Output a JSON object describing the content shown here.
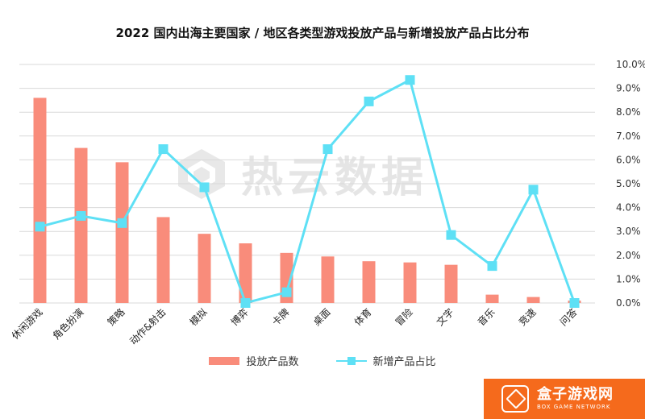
{
  "title": "2022 国内出海主要国家 / 地区各类型游戏投放产品与新增投放产品占比分布",
  "colors": {
    "bar": "#f98c7b",
    "line": "#5ee0f5",
    "grid": "#d9d9d9"
  },
  "legend": {
    "bar_label": "投放产品数",
    "line_label": "新增产品占比"
  },
  "watermark": {
    "text": "热云数据"
  },
  "brand": {
    "name": "盒子游戏网",
    "sub": "BOX GAME NETWORK",
    "color": "#f56a1c"
  },
  "chart_data": {
    "type": "bar+line",
    "categories": [
      "休闲游戏",
      "角色扮演",
      "策略",
      "动作&射击",
      "模拟",
      "博弈",
      "卡牌",
      "桌面",
      "体育",
      "冒险",
      "文字",
      "音乐",
      "竞速",
      "问答"
    ],
    "series": [
      {
        "name": "投放产品数",
        "type": "bar",
        "axis": "left",
        "values": [
          8.6,
          6.5,
          5.9,
          3.6,
          2.9,
          2.5,
          2.1,
          1.95,
          1.75,
          1.7,
          1.6,
          0.35,
          0.25,
          0.1
        ]
      },
      {
        "name": "新增产品占比",
        "type": "line",
        "axis": "right",
        "values": [
          3.2,
          3.65,
          3.35,
          6.45,
          4.85,
          0.0,
          0.45,
          6.45,
          8.45,
          9.35,
          2.85,
          1.55,
          4.75,
          0.0
        ]
      }
    ],
    "right_axis": {
      "ticks": [
        "0.0%",
        "1.0%",
        "2.0%",
        "3.0%",
        "4.0%",
        "5.0%",
        "6.0%",
        "7.0%",
        "8.0%",
        "9.0%",
        "10.0%"
      ],
      "range": [
        0,
        10
      ]
    },
    "left_range": [
      0,
      10
    ],
    "grid": true,
    "legend_position": "bottom"
  }
}
